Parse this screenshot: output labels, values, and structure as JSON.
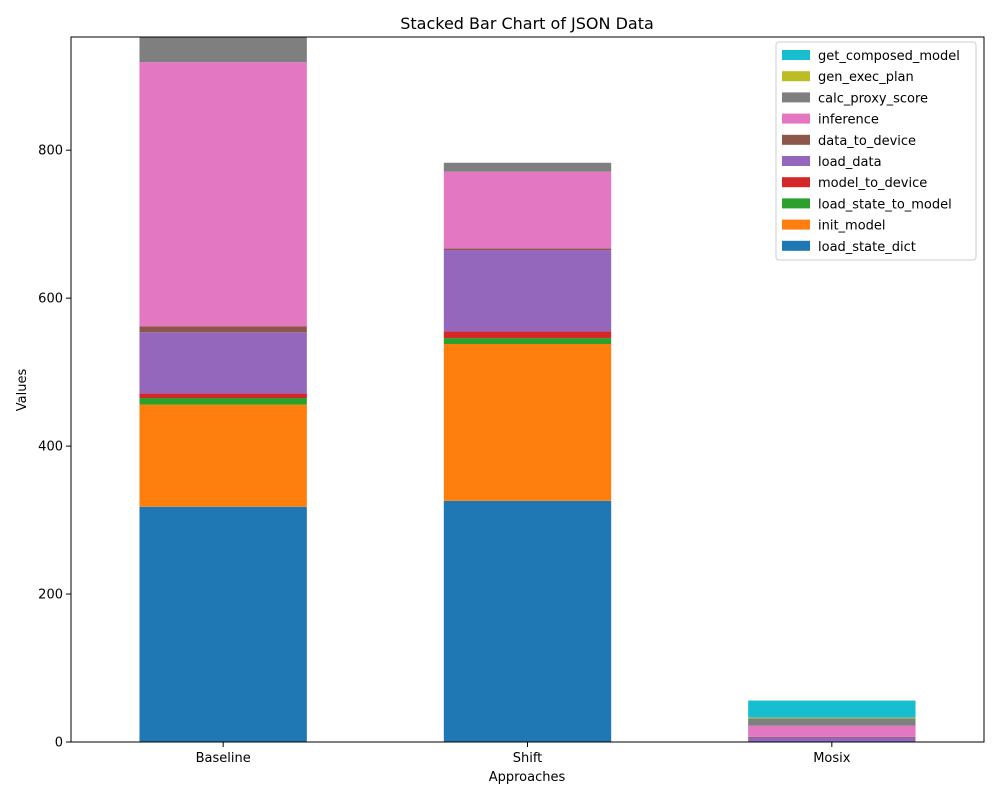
{
  "chart_data": {
    "type": "bar",
    "stacked": true,
    "title": "Stacked Bar Chart of JSON Data",
    "xlabel": "Approaches",
    "ylabel": "Values",
    "categories": [
      "Baseline",
      "Shift",
      "Mosix"
    ],
    "ylim": [
      0,
      953
    ],
    "yticks": [
      0,
      200,
      400,
      600,
      800
    ],
    "grid": false,
    "legend_placement": "top-right",
    "series": [
      {
        "name": "load_state_dict",
        "color": "#1f77b4",
        "values": [
          318,
          326,
          0
        ]
      },
      {
        "name": "init_model",
        "color": "#ff7f0e",
        "values": [
          138,
          212,
          0
        ]
      },
      {
        "name": "load_state_to_model",
        "color": "#2ca02c",
        "values": [
          9,
          8,
          0
        ]
      },
      {
        "name": "model_to_device",
        "color": "#d62728",
        "values": [
          6,
          9,
          0
        ]
      },
      {
        "name": "load_data",
        "color": "#9467bd",
        "values": [
          83,
          110,
          6
        ]
      },
      {
        "name": "data_to_device",
        "color": "#8c564b",
        "values": [
          8,
          2,
          1
        ]
      },
      {
        "name": "inference",
        "color": "#e377c2",
        "values": [
          357,
          104,
          15
        ]
      },
      {
        "name": "calc_proxy_score",
        "color": "#7f7f7f",
        "values": [
          34,
          12,
          10
        ]
      },
      {
        "name": "gen_exec_plan",
        "color": "#bcbd22",
        "values": [
          0,
          0,
          1
        ]
      },
      {
        "name": "get_composed_model",
        "color": "#17becf",
        "values": [
          0,
          0,
          23
        ]
      }
    ]
  }
}
